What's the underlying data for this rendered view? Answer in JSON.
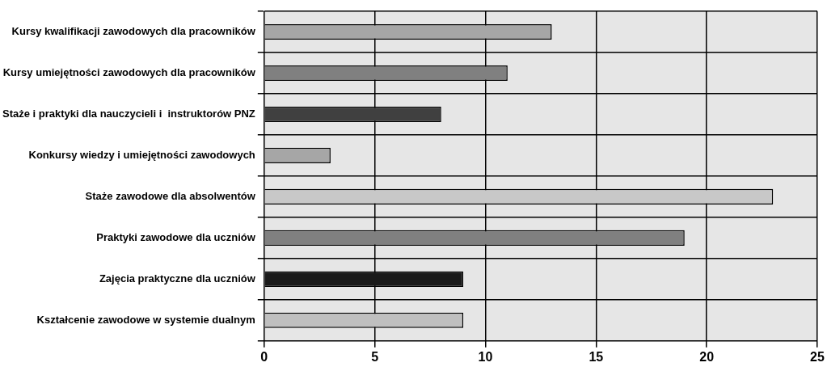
{
  "chart_data": {
    "type": "bar",
    "orientation": "horizontal",
    "categories": [
      "Kursy kwalifikacji zawodowych dla pracowników",
      "Kursy umiejętności zawodowych dla pracowników",
      "Staże i praktyki dla nauczycieli i  instruktorów PNZ",
      "Konkursy wiedzy i umiejętności zawodowych",
      "Staże zawodowe dla absolwentów",
      "Praktyki zawodowe dla uczniów",
      "Zajęcia praktyczne dla uczniów",
      "Kształcenie zawodowe w systemie dualnym"
    ],
    "values": [
      13,
      11,
      8,
      3,
      23,
      19,
      9,
      9
    ],
    "colors": [
      "#a6a6a6",
      "#808080",
      "#404040",
      "#a6a6a6",
      "#c8c8c8",
      "#808080",
      "#1a1a1a",
      "#bfbfbf"
    ],
    "xlim": [
      0,
      25
    ],
    "xticks": [
      0,
      5,
      10,
      15,
      20,
      25
    ],
    "grid": true
  }
}
